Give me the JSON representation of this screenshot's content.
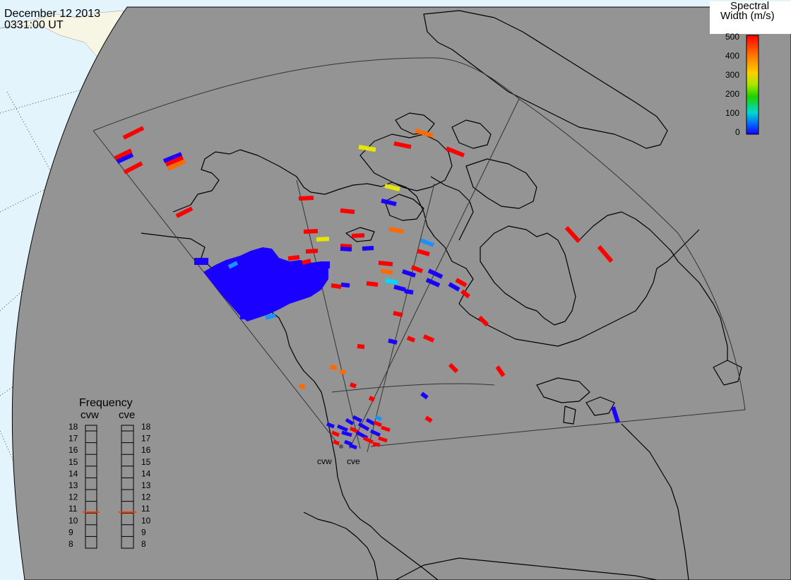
{
  "header": {
    "date": "December 12 2013",
    "time": "0331:00 UT"
  },
  "colorbar": {
    "title_line1": "Spectral",
    "title_line2": "Width (m/s)",
    "ticks": [
      "500",
      "400",
      "300",
      "200",
      "100",
      "0"
    ],
    "stops": [
      "#ff0000",
      "#ff6a00",
      "#ffd000",
      "#a8e600",
      "#1fd000",
      "#00d8d0",
      "#0066ff",
      "#1a00ff"
    ]
  },
  "radars": {
    "west_label": "cvw",
    "east_label": "cve"
  },
  "frequency": {
    "title": "Frequency",
    "left_header": "cvw",
    "right_header": "cve",
    "levels": [
      "18",
      "17",
      "16",
      "15",
      "14",
      "13",
      "12",
      "11",
      "10",
      "9",
      "8"
    ],
    "cvw_value": 10.6,
    "cve_value": 10.6
  },
  "colors": {
    "map_background": "#949494",
    "ocean": "#e4f4fc",
    "land_outside": "#f7f5e3",
    "coastline": "#000000",
    "red": "#ff0000",
    "blue": "#1a00ff",
    "orange": "#ff6a00",
    "yellow": "#e6e600",
    "light_blue": "#1e90ff",
    "cyan": "#00d8ff"
  }
}
